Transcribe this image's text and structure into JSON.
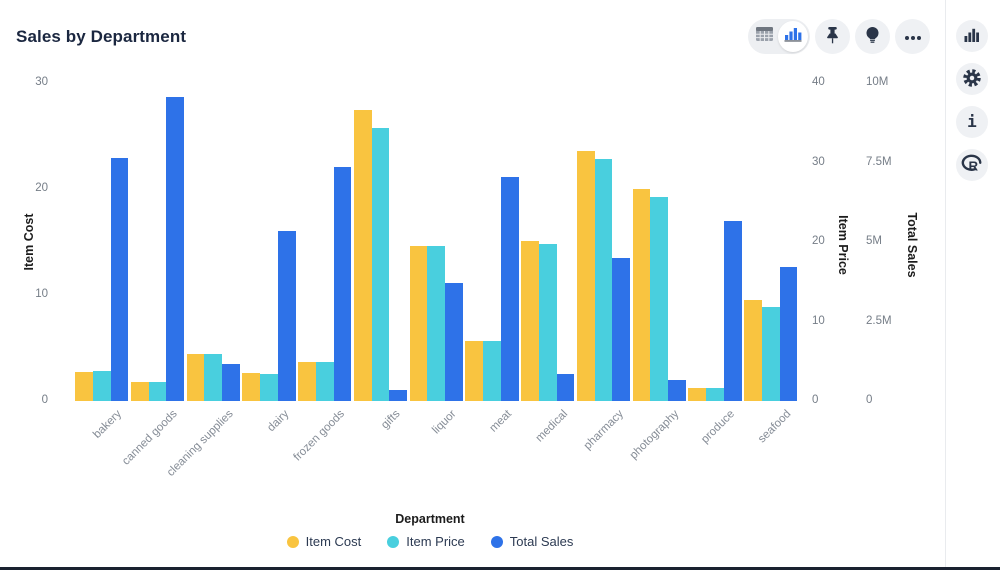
{
  "page": {
    "title": "Sales by Department"
  },
  "toolbar": {
    "view_toggle": {
      "options": [
        "table-view",
        "chart-view"
      ],
      "selected": "chart-view"
    },
    "buttons": [
      "pin",
      "insights",
      "more-options"
    ]
  },
  "icons": {
    "toolbar": [
      "table-view-icon",
      "bar-chart-view-icon",
      "pin-icon",
      "lightbulb-icon",
      "ellipsis-icon"
    ],
    "sidebar": [
      "bar-chart-icon",
      "gear-icon",
      "info-icon",
      "r-logo-icon"
    ]
  },
  "colors": {
    "item_cost": "#f9c440",
    "item_price": "#49cfde",
    "total_sales": "#2e72e8",
    "icon_dark": "#2a3548",
    "button_bg": "#eff1f4",
    "tick_gray": "#757d87",
    "bottom_bar": "#1a2230"
  },
  "chart_data": {
    "type": "bar",
    "title": "Sales by Department",
    "grid": false,
    "legend_position": "bottom",
    "xlabel": "Department",
    "categories": [
      "bakery",
      "canned goods",
      "cleaning supplies",
      "dairy",
      "frozen goods",
      "gifts",
      "liquor",
      "meat",
      "medical",
      "pharmacy",
      "photography",
      "produce",
      "seafood"
    ],
    "series": [
      {
        "name": "Item Cost",
        "axis": "left",
        "color": "#f9c440",
        "values": [
          2.7,
          1.8,
          4.4,
          2.6,
          3.7,
          27.5,
          14.6,
          5.7,
          15.1,
          23.6,
          20.0,
          1.2,
          9.5
        ]
      },
      {
        "name": "Item Price",
        "axis": "right1",
        "color": "#49cfde",
        "values": [
          3.8,
          2.4,
          5.9,
          3.4,
          4.9,
          34.4,
          19.5,
          7.6,
          19.8,
          30.4,
          25.6,
          1.6,
          11.8
        ]
      },
      {
        "name": "Total Sales",
        "axis": "right2",
        "unit": "M",
        "color": "#2e72e8",
        "values": [
          7.65,
          9.55,
          1.15,
          5.35,
          7.35,
          0.35,
          3.7,
          7.05,
          0.85,
          4.5,
          0.65,
          5.65,
          4.2
        ]
      }
    ],
    "axes": {
      "left": {
        "title": "Item Cost",
        "ticks": [
          "0",
          "10",
          "20",
          "30"
        ],
        "max": 30
      },
      "right1": {
        "title": "Item Price",
        "ticks": [
          "0",
          "10",
          "20",
          "30",
          "40"
        ],
        "max": 40
      },
      "right2": {
        "title": "Total Sales",
        "ticks": [
          "0",
          "2.5M",
          "5M",
          "7.5M",
          "10M"
        ],
        "max": 10
      }
    },
    "legend": [
      "Item Cost",
      "Item Price",
      "Total Sales"
    ]
  }
}
